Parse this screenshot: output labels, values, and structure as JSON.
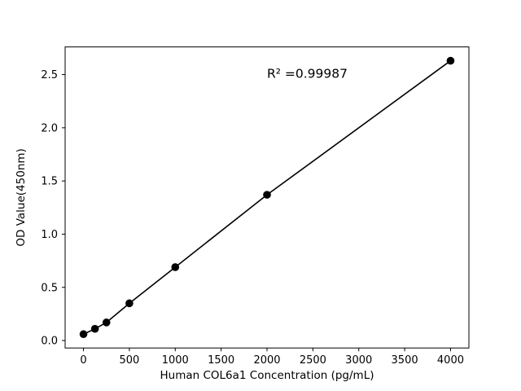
{
  "chart_data": {
    "type": "scatter",
    "title": "",
    "xlabel": "Human COL6a1 Concentration (pg/mL)",
    "ylabel": "OD Value(450nm)",
    "annotation": "R² =0.99987",
    "x": [
      0,
      125,
      250,
      500,
      1000,
      2000,
      4000
    ],
    "y": [
      0.06,
      0.11,
      0.17,
      0.35,
      0.69,
      1.37,
      2.63
    ],
    "fit_line": true,
    "xlim": [
      -200,
      4200
    ],
    "ylim": [
      -0.07,
      2.76
    ],
    "xticks": [
      0,
      500,
      1000,
      1500,
      2000,
      2500,
      3000,
      3500,
      4000
    ],
    "xtick_labels": [
      "0",
      "500",
      "1000",
      "1500",
      "2000",
      "2500",
      "3000",
      "3500",
      "4000"
    ],
    "yticks": [
      0.0,
      0.5,
      1.0,
      1.5,
      2.0,
      2.5
    ],
    "ytick_labels": [
      "0.0",
      "0.5",
      "1.0",
      "1.5",
      "2.0",
      "2.5"
    ],
    "grid": false,
    "legend_position": "none",
    "marker_color": "#000000",
    "line_color": "#000000",
    "frame_color": "#000000",
    "background_color": "#ffffff",
    "annotation_anchor": {
      "x": 2000,
      "y": 2.47
    }
  }
}
